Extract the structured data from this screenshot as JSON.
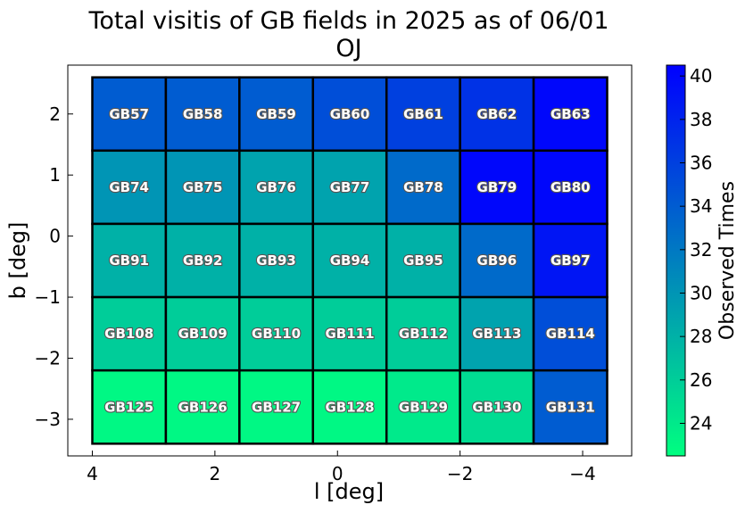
{
  "chart_data": {
    "type": "heatmap",
    "title": "Total visitis of GB fields in 2025 as of 06/01",
    "subtitle": "OJ",
    "xlabel": "l [deg]",
    "ylabel": "b [deg]",
    "xlim": [
      4.4,
      -4.8
    ],
    "ylim": [
      -3.6,
      2.8
    ],
    "x_ticks": [
      4,
      2,
      0,
      -2,
      -4
    ],
    "x_tick_labels": [
      "4",
      "2",
      "0",
      "−2",
      "−4"
    ],
    "y_ticks": [
      2,
      1,
      0,
      -1,
      -2,
      -3
    ],
    "y_tick_labels": [
      "2",
      "1",
      "0",
      "−1",
      "−2",
      "−3"
    ],
    "cell_width_deg": 1.2,
    "cell_height_deg": 1.2,
    "columns_l_center": [
      3.4,
      2.2,
      1.0,
      -0.2,
      -1.4,
      -2.6,
      -3.8
    ],
    "rows_b_center": [
      2.0,
      0.8,
      -0.4,
      -1.6,
      -2.8
    ],
    "grid": [
      [
        "GB57",
        "GB58",
        "GB59",
        "GB60",
        "GB61",
        "GB62",
        "GB63"
      ],
      [
        "GB74",
        "GB75",
        "GB76",
        "GB77",
        "GB78",
        "GB79",
        "GB80"
      ],
      [
        "GB91",
        "GB92",
        "GB93",
        "GB94",
        "GB95",
        "GB96",
        "GB97"
      ],
      [
        "GB108",
        "GB109",
        "GB110",
        "GB111",
        "GB112",
        "GB113",
        "GB114"
      ],
      [
        "GB125",
        "GB126",
        "GB127",
        "GB128",
        "GB129",
        "GB130",
        "GB131"
      ]
    ],
    "values": [
      [
        34,
        34,
        34,
        35,
        36,
        37,
        40
      ],
      [
        30,
        30,
        29,
        29,
        33,
        40,
        40
      ],
      [
        28,
        28,
        28,
        28,
        28,
        33,
        39
      ],
      [
        26,
        26,
        26,
        26,
        26,
        29,
        35
      ],
      [
        23,
        23,
        23,
        23,
        24,
        25,
        34
      ]
    ],
    "colorbar": {
      "label": "Observed Times",
      "vmin": 22.5,
      "vmax": 40.5,
      "ticks": [
        24,
        26,
        28,
        30,
        32,
        34,
        36,
        38,
        40
      ],
      "tick_labels": [
        "24",
        "26",
        "28",
        "30",
        "32",
        "34",
        "36",
        "38",
        "40"
      ],
      "colormap": "winter_r",
      "color_low": "#00ff80",
      "color_high": "#0000ff"
    },
    "grid_lines": false
  }
}
